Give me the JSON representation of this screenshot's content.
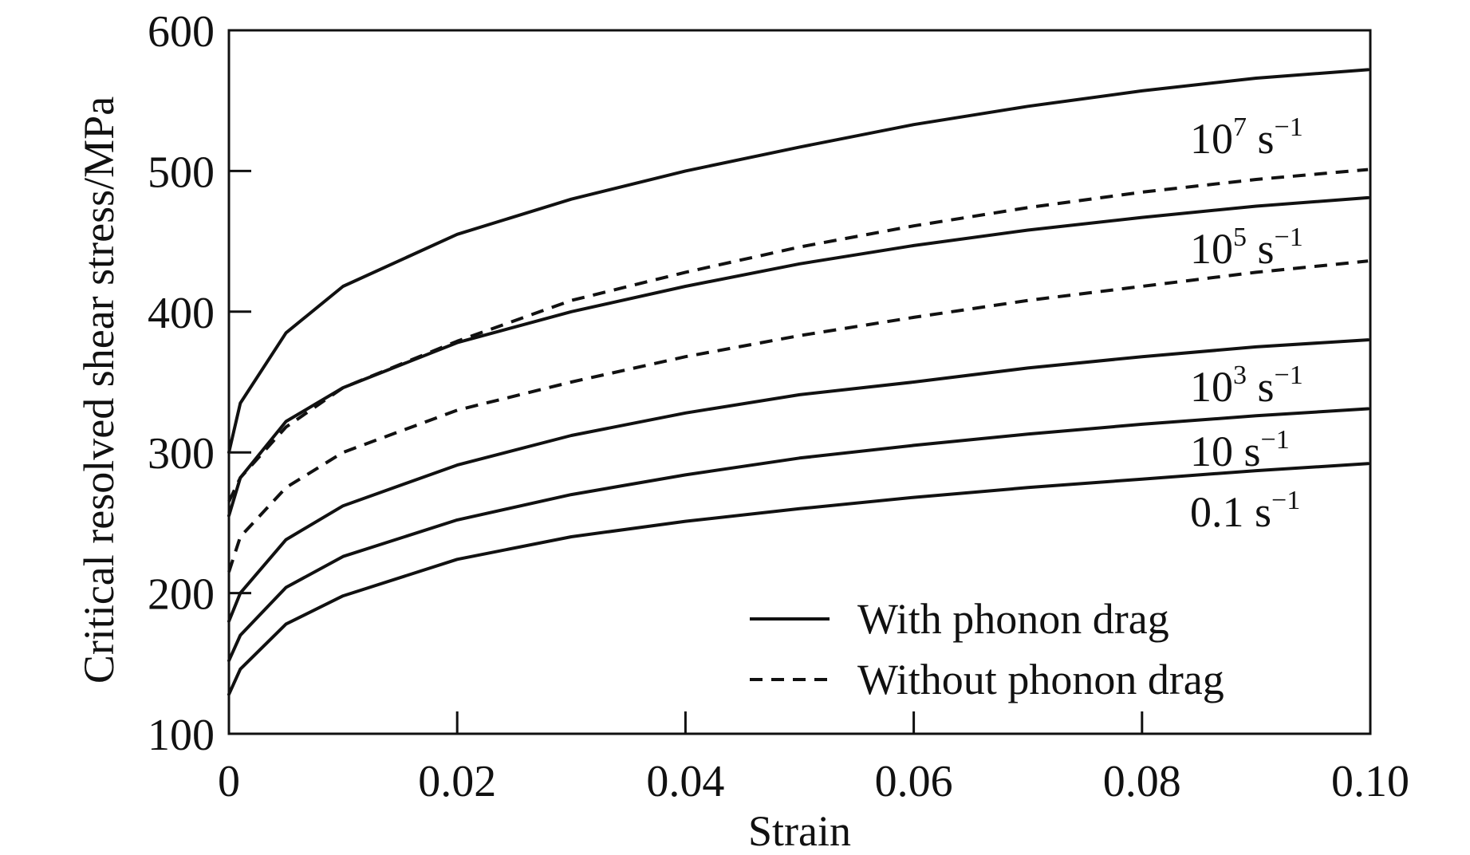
{
  "chart_data": {
    "type": "line",
    "xlabel": "Strain",
    "ylabel": "Critical resolved shear stress/MPa",
    "xlim": [
      0,
      0.1
    ],
    "ylim": [
      100,
      600
    ],
    "x_ticks": [
      "0",
      "0.02",
      "0.04",
      "0.06",
      "0.08",
      "0.10"
    ],
    "y_ticks": [
      "100",
      "200",
      "300",
      "400",
      "500",
      "600"
    ],
    "grid": false,
    "legend_position": "bottom-right",
    "legend": [
      {
        "label": "With phonon drag",
        "style": "solid"
      },
      {
        "label": "Without phonon drag",
        "style": "dashed"
      }
    ],
    "annotations": [
      {
        "base": "10",
        "exp": "7",
        "unit": " s",
        "unit_exp": "−1"
      },
      {
        "base": "10",
        "exp": "5",
        "unit": " s",
        "unit_exp": "−1"
      },
      {
        "base": "10",
        "exp": "3",
        "unit": " s",
        "unit_exp": "−1"
      },
      {
        "base": "10",
        "exp": "",
        "unit": " s",
        "unit_exp": "−1"
      },
      {
        "base": "0.1",
        "exp": "",
        "unit": " s",
        "unit_exp": "−1"
      }
    ],
    "series": [
      {
        "style": "solid",
        "rate": "1e7",
        "points": [
          [
            0,
            300
          ],
          [
            0.001,
            335
          ],
          [
            0.005,
            385
          ],
          [
            0.01,
            418
          ],
          [
            0.02,
            455
          ],
          [
            0.03,
            480
          ],
          [
            0.04,
            500
          ],
          [
            0.05,
            517
          ],
          [
            0.06,
            533
          ],
          [
            0.07,
            546
          ],
          [
            0.08,
            557
          ],
          [
            0.09,
            566
          ],
          [
            0.0998,
            572
          ]
        ]
      },
      {
        "style": "dashed",
        "rate": "1e7",
        "points": [
          [
            0,
            265
          ],
          [
            0.001,
            282
          ],
          [
            0.005,
            318
          ],
          [
            0.01,
            346
          ],
          [
            0.02,
            379
          ],
          [
            0.03,
            408
          ],
          [
            0.04,
            428
          ],
          [
            0.05,
            446
          ],
          [
            0.06,
            461
          ],
          [
            0.07,
            474
          ],
          [
            0.08,
            485
          ],
          [
            0.09,
            494
          ],
          [
            0.0998,
            501
          ]
        ]
      },
      {
        "style": "solid",
        "rate": "1e5",
        "points": [
          [
            0,
            255
          ],
          [
            0.001,
            282
          ],
          [
            0.005,
            322
          ],
          [
            0.01,
            346
          ],
          [
            0.02,
            378
          ],
          [
            0.03,
            400
          ],
          [
            0.04,
            418
          ],
          [
            0.05,
            434
          ],
          [
            0.06,
            447
          ],
          [
            0.07,
            458
          ],
          [
            0.08,
            467
          ],
          [
            0.09,
            475
          ],
          [
            0.0998,
            481
          ]
        ]
      },
      {
        "style": "dashed",
        "rate": "1e5",
        "points": [
          [
            0,
            215
          ],
          [
            0.001,
            240
          ],
          [
            0.005,
            275
          ],
          [
            0.01,
            300
          ],
          [
            0.02,
            330
          ],
          [
            0.03,
            350
          ],
          [
            0.04,
            368
          ],
          [
            0.05,
            383
          ],
          [
            0.06,
            396
          ],
          [
            0.07,
            408
          ],
          [
            0.08,
            418
          ],
          [
            0.09,
            428
          ],
          [
            0.0998,
            436
          ]
        ]
      },
      {
        "style": "solid",
        "rate": "1e3",
        "points": [
          [
            0,
            180
          ],
          [
            0.001,
            200
          ],
          [
            0.005,
            238
          ],
          [
            0.01,
            262
          ],
          [
            0.02,
            291
          ],
          [
            0.03,
            312
          ],
          [
            0.04,
            328
          ],
          [
            0.05,
            341
          ],
          [
            0.06,
            350
          ],
          [
            0.07,
            360
          ],
          [
            0.08,
            368
          ],
          [
            0.09,
            375
          ],
          [
            0.0998,
            380
          ]
        ]
      },
      {
        "style": "solid",
        "rate": "10",
        "points": [
          [
            0,
            152
          ],
          [
            0.001,
            170
          ],
          [
            0.005,
            204
          ],
          [
            0.01,
            226
          ],
          [
            0.02,
            252
          ],
          [
            0.03,
            270
          ],
          [
            0.04,
            284
          ],
          [
            0.05,
            296
          ],
          [
            0.06,
            305
          ],
          [
            0.07,
            313
          ],
          [
            0.08,
            320
          ],
          [
            0.09,
            326
          ],
          [
            0.0998,
            331
          ]
        ]
      },
      {
        "style": "solid",
        "rate": "0.1",
        "points": [
          [
            0,
            128
          ],
          [
            0.001,
            146
          ],
          [
            0.005,
            178
          ],
          [
            0.01,
            198
          ],
          [
            0.02,
            224
          ],
          [
            0.03,
            240
          ],
          [
            0.04,
            251
          ],
          [
            0.05,
            260
          ],
          [
            0.06,
            268
          ],
          [
            0.07,
            275
          ],
          [
            0.08,
            281
          ],
          [
            0.09,
            287
          ],
          [
            0.0998,
            292
          ]
        ]
      }
    ]
  }
}
